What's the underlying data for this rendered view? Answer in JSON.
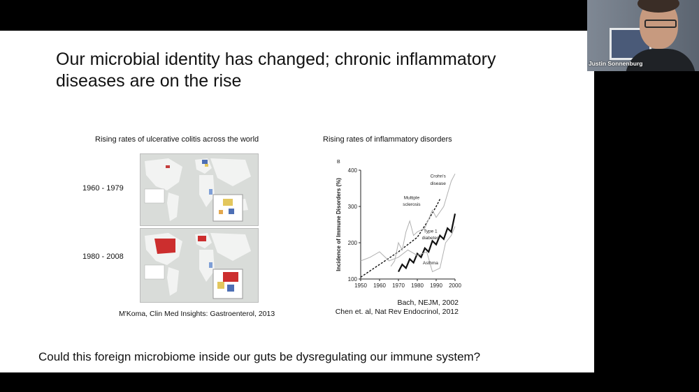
{
  "slide": {
    "title": "Our microbial identity has changed;  chronic inflammatory diseases are on the rise",
    "left_caption": "Rising rates of ulcerative colitis across the world",
    "right_caption": "Rising rates of inflammatory disorders",
    "period_1": "1960 - 1979",
    "period_2": "1980 - 2008",
    "left_citation": "M'Koma, Clin Med Insights: Gastroenterol, 2013",
    "right_citation_1": "Bach, NEJM, 2002",
    "right_citation_2": "Chen et. al, Nat Rev Endocrinol, 2012",
    "question": "Could this foreign microbiome inside our guts be dysregulating our immune system?"
  },
  "webcam": {
    "name": "Justin Sonnenburg"
  },
  "chart_data": {
    "type": "line",
    "panel_label": "B",
    "ylabel": "Incidence of Immune Disorders (%)",
    "xlabel": "",
    "xlim": [
      1950,
      2000
    ],
    "ylim": [
      100,
      400
    ],
    "x_ticks": [
      1950,
      1960,
      1970,
      1980,
      1990,
      2000
    ],
    "y_ticks": [
      100,
      200,
      300,
      400
    ],
    "series": [
      {
        "name": "Multiple sclerosis",
        "style": "dashed",
        "color": "#111111",
        "points": [
          [
            1950,
            105
          ],
          [
            1960,
            140
          ],
          [
            1970,
            175
          ],
          [
            1980,
            215
          ],
          [
            1985,
            255
          ],
          [
            1990,
            300
          ],
          [
            1992,
            320
          ]
        ]
      },
      {
        "name": "Type 1 diabetes",
        "style": "bold",
        "color": "#111111",
        "points": [
          [
            1970,
            120
          ],
          [
            1972,
            140
          ],
          [
            1974,
            130
          ],
          [
            1976,
            155
          ],
          [
            1978,
            145
          ],
          [
            1980,
            170
          ],
          [
            1982,
            160
          ],
          [
            1984,
            185
          ],
          [
            1986,
            175
          ],
          [
            1988,
            205
          ],
          [
            1990,
            195
          ],
          [
            1992,
            220
          ],
          [
            1994,
            210
          ],
          [
            1996,
            240
          ],
          [
            1998,
            230
          ],
          [
            2000,
            280
          ]
        ]
      },
      {
        "name": "Crohn's disease",
        "style": "light",
        "color": "#b0b0b0",
        "points": [
          [
            1966,
            135
          ],
          [
            1968,
            150
          ],
          [
            1970,
            200
          ],
          [
            1972,
            180
          ],
          [
            1974,
            230
          ],
          [
            1976,
            260
          ],
          [
            1978,
            220
          ],
          [
            1980,
            230
          ],
          [
            1984,
            240
          ],
          [
            1988,
            290
          ],
          [
            1990,
            270
          ],
          [
            1994,
            300
          ],
          [
            1998,
            370
          ],
          [
            2000,
            390
          ]
        ]
      },
      {
        "name": "Asthma",
        "style": "light",
        "color": "#b0b0b0",
        "points": [
          [
            1950,
            150
          ],
          [
            1955,
            160
          ],
          [
            1960,
            175
          ],
          [
            1965,
            150
          ],
          [
            1970,
            160
          ],
          [
            1975,
            180
          ],
          [
            1980,
            165
          ],
          [
            1985,
            175
          ],
          [
            1988,
            120
          ],
          [
            1992,
            130
          ],
          [
            1995,
            200
          ],
          [
            1998,
            220
          ],
          [
            2000,
            245
          ]
        ]
      }
    ],
    "annotations": [
      {
        "text": "Crohn's",
        "x": 1991,
        "y": 380
      },
      {
        "text": "disease",
        "x": 1991,
        "y": 360
      },
      {
        "text": "Multiple",
        "x": 1977,
        "y": 320
      },
      {
        "text": "sclerosis",
        "x": 1977,
        "y": 302
      },
      {
        "text": "Type 1",
        "x": 1987,
        "y": 228
      },
      {
        "text": "diabetes",
        "x": 1987,
        "y": 210
      },
      {
        "text": "Asthma",
        "x": 1987,
        "y": 140
      }
    ]
  }
}
